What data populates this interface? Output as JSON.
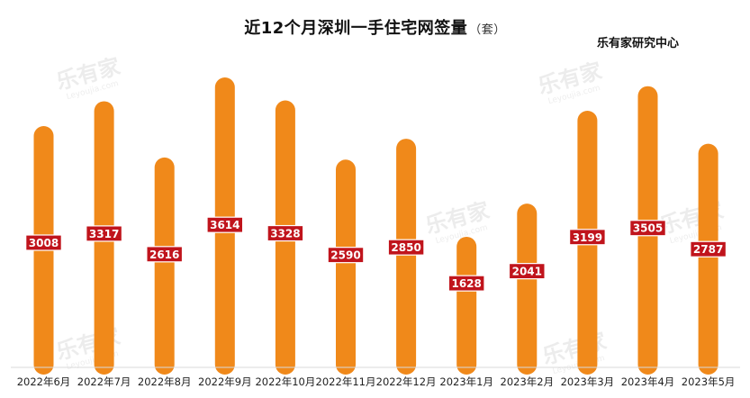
{
  "title": "近12个月深圳一手住宅网签量",
  "unit": "（套）",
  "source": "乐有家研究中心",
  "watermark": {
    "main": "乐有家",
    "sub": "Leyoujia.com"
  },
  "colors": {
    "bar": "#F0891A",
    "label_bg": "#C0141C",
    "label_text": "#ffffff",
    "axis": "#d9d9d9",
    "tick_text": "#222222"
  },
  "chart_data": {
    "type": "bar",
    "title": "近12个月深圳一手住宅网签量",
    "unit": "套",
    "categories": [
      "2022年6月",
      "2022年7月",
      "2022年8月",
      "2022年9月",
      "2022年10月",
      "2022年11月",
      "2022年12月",
      "2023年1月",
      "2023年2月",
      "2023年3月",
      "2023年4月",
      "2023年5月"
    ],
    "values": [
      3008,
      3317,
      2616,
      3614,
      3328,
      2590,
      2850,
      1628,
      2041,
      3199,
      3505,
      2787
    ],
    "grid": false,
    "legend": "none"
  }
}
